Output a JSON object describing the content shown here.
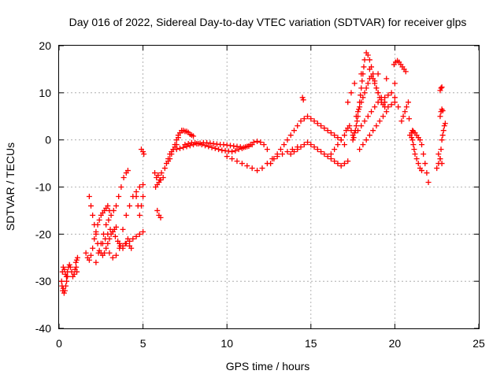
{
  "chart_data": {
    "type": "scatter",
    "title": "Day 016 of 2022, Sidereal Day-to-day VTEC variation (SDTVAR) for receiver glps",
    "xlabel": "GPS time / hours",
    "ylabel": "SDTVAR / TECUs",
    "xlim": [
      0,
      25
    ],
    "ylim": [
      -40,
      20
    ],
    "x_ticks": [
      0,
      5,
      10,
      15,
      20,
      25
    ],
    "y_ticks": [
      -40,
      -30,
      -20,
      -10,
      0,
      10,
      20
    ],
    "x_tick_labels": [
      "0",
      "5",
      "10",
      "15",
      "20",
      "25"
    ],
    "y_tick_labels": [
      "-40",
      "-30",
      "-20",
      "-10",
      "0",
      "10",
      "20"
    ],
    "grid": true,
    "marker": "+",
    "series": [
      {
        "name": "SDTVAR",
        "color": "#ff0000",
        "x": [
          0.15,
          0.18,
          0.22,
          0.25,
          0.3,
          0.35,
          0.4,
          0.45,
          0.5,
          0.2,
          0.25,
          0.32,
          0.38,
          0.44,
          0.5,
          0.56,
          0.62,
          0.68,
          0.75,
          0.82,
          0.9,
          0.95,
          1.0,
          1.05,
          1.1,
          1.02,
          1.06,
          1.6,
          1.7,
          1.8,
          1.9,
          2.0,
          2.1,
          2.2,
          2.3,
          2.4,
          2.5,
          2.6,
          2.7,
          2.8,
          2.9,
          3.0,
          1.8,
          1.9,
          2.0,
          2.1,
          2.2,
          2.3,
          2.4,
          2.5,
          2.6,
          2.7,
          2.8,
          2.9,
          3.0,
          3.1,
          3.2,
          3.3,
          3.4,
          2.2,
          2.35,
          2.5,
          2.65,
          2.8,
          2.95,
          3.1,
          3.25,
          3.4,
          3.55,
          3.7,
          3.85,
          4.0,
          4.1,
          2.6,
          2.75,
          2.9,
          3.05,
          3.2,
          3.35,
          3.5,
          3.65,
          3.8,
          3.95,
          4.1,
          4.2,
          4.3,
          3.0,
          3.2,
          3.4,
          3.6,
          3.8,
          4.0,
          4.2,
          4.4,
          4.6,
          4.8,
          5.0,
          3.6,
          3.8,
          4.0,
          4.2,
          4.4,
          4.6,
          4.8,
          5.0,
          4.6,
          4.7,
          4.8,
          4.9,
          5.0,
          4.9,
          5.0,
          5.05,
          5.7,
          5.8,
          5.9,
          6.0,
          6.1,
          5.75,
          5.85,
          5.95,
          6.05,
          5.85,
          5.95,
          6.05,
          6.2,
          6.3,
          6.4,
          6.5,
          6.6,
          6.7,
          6.8,
          6.9,
          7.0,
          7.1,
          7.2,
          6.5,
          6.6,
          6.7,
          6.8,
          6.9,
          7.0,
          7.1,
          7.2,
          7.3,
          7.4,
          7.5,
          7.6,
          7.7,
          7.8,
          7.9,
          8.0,
          7.0,
          7.2,
          7.4,
          7.6,
          7.8,
          8.0,
          8.2,
          8.4,
          8.6,
          8.8,
          9.0,
          9.2,
          9.4,
          9.6,
          9.8,
          10.0,
          10.2,
          10.4,
          10.6,
          10.8,
          11.0,
          11.2,
          11.4,
          11.6,
          11.8,
          12.0,
          12.2,
          12.4,
          7.5,
          7.7,
          7.9,
          8.1,
          8.3,
          8.5,
          8.7,
          8.9,
          9.1,
          9.3,
          9.5,
          9.7,
          9.9,
          10.1,
          10.3,
          10.5,
          10.7,
          10.9,
          11.1,
          11.3,
          11.5,
          10.0,
          10.3,
          10.6,
          10.9,
          11.2,
          11.5,
          11.8,
          12.1,
          12.4,
          12.7,
          13.0,
          13.3,
          13.6,
          13.9,
          14.2,
          12.6,
          12.8,
          13.0,
          13.2,
          13.4,
          13.6,
          13.8,
          14.0,
          14.2,
          14.4,
          14.6,
          14.8,
          15.0,
          15.2,
          15.4,
          15.6,
          15.8,
          16.0,
          16.2,
          16.4,
          16.6,
          16.8,
          17.0,
          13.8,
          14.0,
          14.2,
          14.4,
          14.6,
          14.8,
          15.0,
          15.2,
          15.4,
          15.6,
          15.8,
          16.0,
          16.2,
          16.4,
          16.6,
          16.8,
          17.0,
          17.2,
          14.5,
          14.55,
          16.2,
          16.4,
          16.6,
          16.8,
          17.0,
          17.1,
          17.2,
          17.3,
          17.4,
          17.5,
          17.5,
          17.55,
          17.6,
          17.65,
          17.7,
          17.75,
          17.8,
          17.85,
          17.9,
          17.95,
          18.0,
          18.05,
          18.1,
          18.15,
          18.2,
          18.3,
          18.4,
          18.5,
          18.6,
          18.7,
          18.8,
          18.9,
          19.0,
          19.1,
          19.2,
          19.3,
          19.4,
          17.7,
          17.8,
          17.9,
          18.0,
          18.1,
          18.2,
          18.3,
          18.4,
          18.5,
          18.6,
          18.7,
          18.8,
          18.9,
          19.0,
          19.2,
          19.4,
          19.6,
          19.8,
          20.0,
          20.2,
          17.8,
          18.0,
          18.2,
          18.4,
          18.6,
          18.8,
          19.0,
          19.2,
          19.4,
          19.6,
          19.8,
          20.0,
          17.9,
          18.1,
          18.3,
          18.5,
          18.7,
          18.9,
          19.1,
          19.3,
          19.5,
          17.2,
          17.4,
          17.6,
          18.0,
          18.5,
          19.0,
          19.5,
          20.0,
          19.95,
          20.05,
          20.15,
          20.25,
          20.35,
          20.45,
          20.55,
          20.65,
          20.4,
          20.5,
          20.6,
          20.7,
          20.8,
          20.85,
          20.9,
          21.0,
          21.05,
          21.1,
          21.15,
          21.2,
          21.3,
          21.4,
          21.5,
          21.6,
          21.0,
          21.05,
          21.1,
          21.2,
          21.3,
          21.4,
          21.5,
          21.6,
          21.7,
          21.8,
          21.9,
          22.0,
          22.5,
          22.6,
          22.7,
          22.75,
          22.8,
          22.85,
          22.9,
          22.95,
          23.0,
          22.7,
          22.75,
          22.8,
          22.85,
          22.7,
          22.75,
          22.8,
          22.6,
          22.7,
          22.8
        ],
        "y": [
          -30.0,
          -31.0,
          -32.0,
          -31.5,
          -32.5,
          -32.0,
          -31.0,
          -30.0,
          -29.0,
          -28.0,
          -27.0,
          -27.5,
          -28.5,
          -29.0,
          -28.0,
          -27.0,
          -26.5,
          -27.0,
          -28.0,
          -29.0,
          -28.5,
          -27.5,
          -26.0,
          -25.5,
          -25.0,
          -27.0,
          -28.0,
          -24.0,
          -25.0,
          -25.5,
          -24.5,
          -23.0,
          -21.0,
          -19.5,
          -18.0,
          -17.0,
          -16.0,
          -15.5,
          -15.0,
          -14.5,
          -14.0,
          -15.0,
          -12.0,
          -14.0,
          -16.0,
          -18.0,
          -20.0,
          -22.0,
          -23.5,
          -24.0,
          -24.5,
          -24.0,
          -23.0,
          -22.0,
          -21.0,
          -20.0,
          -19.5,
          -19.0,
          -18.5,
          -26.0,
          -24.0,
          -22.0,
          -20.0,
          -18.0,
          -17.0,
          -16.0,
          -15.0,
          -14.0,
          -12.0,
          -10.0,
          -8.0,
          -7.0,
          -6.5,
          -22.0,
          -21.0,
          -20.0,
          -19.0,
          -19.5,
          -20.5,
          -21.5,
          -22.5,
          -23.0,
          -22.0,
          -21.0,
          -22.5,
          -23.0,
          -24.0,
          -25.0,
          -24.5,
          -22.0,
          -19.0,
          -16.0,
          -14.0,
          -12.0,
          -11.0,
          -10.0,
          -9.5,
          -23.0,
          -22.5,
          -22.0,
          -21.5,
          -21.0,
          -20.5,
          -20.0,
          -19.5,
          -12.0,
          -14.0,
          -16.0,
          -14.0,
          -12.0,
          -2.0,
          -2.5,
          -3.0,
          -7.0,
          -8.0,
          -7.5,
          -8.5,
          -7.0,
          -10.0,
          -9.5,
          -9.0,
          -8.5,
          -15.0,
          -16.0,
          -16.5,
          -8.0,
          -6.0,
          -5.0,
          -4.5,
          -4.0,
          -3.0,
          -2.0,
          -1.0,
          0.0,
          1.0,
          1.5,
          -4.0,
          -3.0,
          -2.5,
          -2.0,
          -1.5,
          -1.0,
          0.5,
          1.5,
          2.0,
          2.0,
          1.8,
          1.8,
          1.6,
          1.2,
          1.0,
          0.8,
          -2.0,
          -1.8,
          -1.6,
          -1.4,
          -1.2,
          -1.0,
          -0.8,
          -0.7,
          -0.6,
          -0.6,
          -0.7,
          -0.8,
          -0.9,
          -1.0,
          -1.0,
          -1.1,
          -1.2,
          -1.3,
          -1.4,
          -1.5,
          -1.6,
          -1.4,
          -1.0,
          -0.5,
          -0.3,
          -0.5,
          -1.0,
          -2.0,
          -1.0,
          -0.8,
          -0.6,
          -0.6,
          -0.8,
          -1.0,
          -1.2,
          -1.4,
          -1.6,
          -1.8,
          -2.0,
          -2.2,
          -2.3,
          -2.4,
          -2.5,
          -2.3,
          -2.0,
          -1.8,
          -1.5,
          -1.3,
          -1.0,
          -3.5,
          -4.0,
          -4.5,
          -5.0,
          -5.5,
          -6.0,
          -6.5,
          -6.0,
          -5.0,
          -4.0,
          -3.5,
          -3.0,
          -2.5,
          -2.0,
          -1.5,
          -5.0,
          -4.0,
          -3.0,
          -2.0,
          -1.0,
          0.0,
          1.0,
          2.0,
          3.0,
          4.0,
          4.5,
          5.0,
          4.5,
          4.0,
          3.5,
          3.0,
          2.5,
          2.0,
          1.5,
          1.0,
          0.5,
          0.0,
          -1.0,
          -3.0,
          -2.5,
          -2.0,
          -1.5,
          -1.0,
          -0.5,
          -1.0,
          -1.5,
          -2.0,
          -2.5,
          -3.0,
          -3.5,
          -4.0,
          -4.5,
          -5.0,
          -5.5,
          -5.0,
          -4.5,
          9.0,
          8.5,
          -3.0,
          -2.0,
          -1.0,
          0.0,
          1.0,
          2.0,
          2.5,
          3.0,
          2.0,
          1.0,
          0.0,
          0.5,
          1.5,
          2.0,
          3.0,
          4.0,
          5.0,
          6.5,
          8.0,
          9.5,
          11.0,
          12.5,
          14.0,
          15.5,
          17.0,
          18.5,
          18.0,
          17.0,
          15.5,
          14.0,
          12.5,
          11.0,
          10.0,
          9.0,
          8.0,
          7.5,
          7.0,
          5.0,
          6.0,
          7.0,
          8.0,
          9.0,
          10.0,
          11.0,
          12.0,
          13.0,
          13.5,
          13.0,
          12.0,
          11.0,
          10.0,
          9.0,
          8.0,
          7.0,
          7.5,
          8.0,
          7.0,
          2.0,
          3.0,
          4.0,
          5.0,
          6.0,
          7.0,
          8.0,
          8.5,
          9.0,
          9.5,
          10.0,
          9.0,
          -2.0,
          -1.0,
          0.0,
          1.0,
          2.0,
          3.0,
          4.0,
          5.0,
          6.0,
          8.0,
          10.0,
          12.0,
          14.0,
          15.0,
          14.0,
          13.0,
          12.0,
          16.0,
          16.5,
          16.8,
          16.5,
          16.0,
          15.5,
          15.0,
          14.5,
          4.0,
          5.0,
          6.0,
          7.0,
          8.0,
          4.5,
          1.0,
          0.5,
          0.0,
          -1.0,
          -2.0,
          -3.0,
          -4.0,
          -5.0,
          -6.0,
          -6.5,
          1.5,
          2.0,
          1.8,
          1.5,
          1.0,
          0.5,
          0.0,
          -1.0,
          -3.0,
          -5.0,
          -7.0,
          -9.0,
          -6.0,
          -5.0,
          -4.0,
          -2.0,
          0.0,
          1.0,
          2.0,
          3.0,
          3.5,
          5.0,
          6.0,
          6.5,
          6.2,
          10.5,
          11.0,
          11.2,
          -3.0,
          -4.0,
          -5.0
        ]
      }
    ]
  }
}
